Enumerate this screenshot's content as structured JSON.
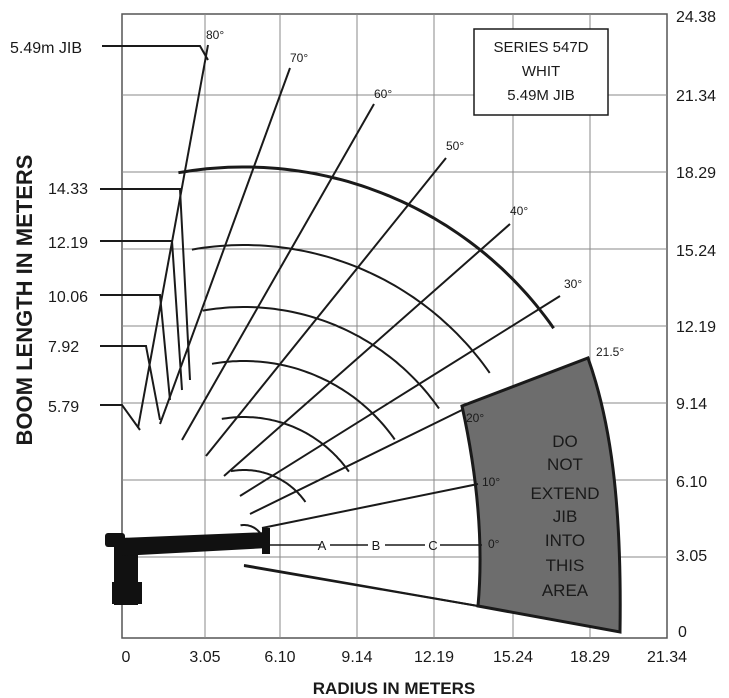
{
  "chart_data": {
    "type": "range-diagram",
    "x_axis": {
      "label": "RADIUS IN METERS",
      "ticks": [
        "0",
        "3.05",
        "6.10",
        "9.14",
        "12.19",
        "15.24",
        "18.29",
        "21.34"
      ],
      "range": [
        0,
        21.34
      ]
    },
    "y_axis_right": {
      "ticks": [
        "0",
        "3.05",
        "6.10",
        "9.14",
        "12.19",
        "15.24",
        "18.29",
        "21.34",
        "24.38"
      ],
      "range": [
        0,
        24.38
      ]
    },
    "y_axis_left": {
      "label": "BOOM LENGTH IN METERS",
      "boom_lengths": [
        "5.79",
        "7.92",
        "10.06",
        "12.19",
        "14.33",
        "5.49m JIB"
      ]
    },
    "angle_labels": [
      "80°",
      "70°",
      "60°",
      "50°",
      "40°",
      "30°",
      "21.5°",
      "20°",
      "10°",
      "0°"
    ],
    "row_labels": [
      "A",
      "B",
      "C"
    ],
    "info_box": [
      "SERIES 547D",
      "WHIT",
      "5.49M JIB"
    ],
    "restricted_area_text": [
      "DO",
      "NOT",
      "EXTEND",
      "JIB",
      "INTO",
      "THIS",
      "AREA"
    ],
    "colors": {
      "restricted_fill": "#6d6d6d",
      "grid": "#8a8a8a",
      "lines": "#1a1a1a"
    }
  }
}
